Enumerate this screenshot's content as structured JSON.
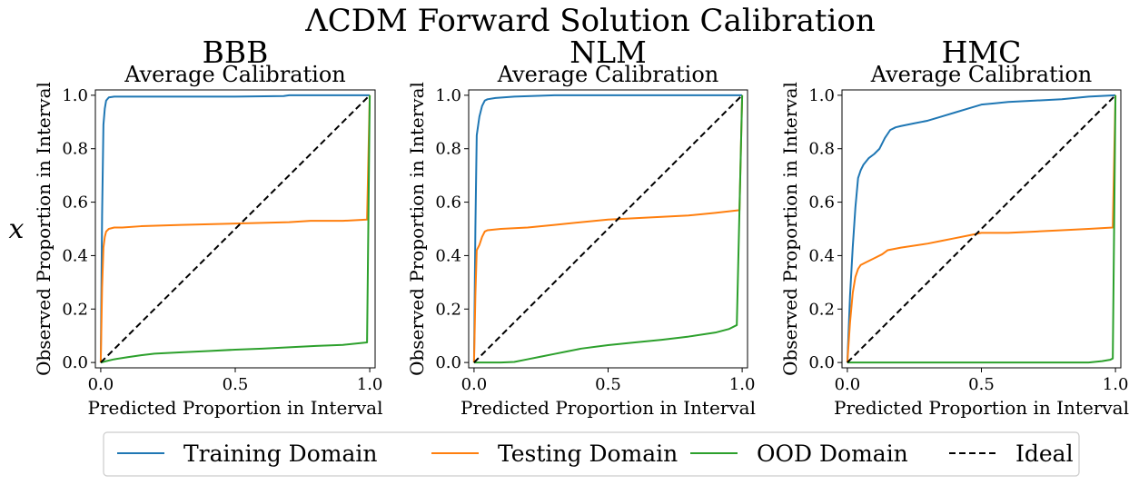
{
  "figure": {
    "suptitle": "ΛCDM Forward Solution Calibration",
    "row_label": "x"
  },
  "colors": {
    "training": "#1f77b4",
    "testing": "#ff7f0e",
    "ood": "#2ca02c",
    "ideal": "#000000"
  },
  "legend": {
    "placement": "bottom-center",
    "entries": [
      {
        "key": "training",
        "label": "Training Domain",
        "style": "solid"
      },
      {
        "key": "testing",
        "label": "Testing Domain",
        "style": "solid"
      },
      {
        "key": "ood",
        "label": "OOD Domain",
        "style": "solid"
      },
      {
        "key": "ideal",
        "label": "Ideal",
        "style": "dashed"
      }
    ]
  },
  "chart_data": [
    {
      "type": "line",
      "title": "BBB",
      "subtitle": "Average Calibration",
      "xlabel": "Predicted Proportion in Interval",
      "ylabel": "Observed Proportion in Interval",
      "xlim": [
        0,
        1
      ],
      "ylim": [
        0,
        1
      ],
      "xticks": [
        0.0,
        0.5,
        1.0
      ],
      "xtick_labels": [
        "0.0",
        "0.5",
        "1.0"
      ],
      "yticks": [
        0,
        0.2,
        0.4,
        0.6,
        0.8,
        1.0
      ],
      "ytick_labels": [
        "0.0",
        "0.2",
        "0.4",
        "0.6",
        "0.8",
        "1.0"
      ],
      "series": [
        {
          "key": "training",
          "x": [
            0,
            0.005,
            0.01,
            0.015,
            0.02,
            0.03,
            0.05,
            0.1,
            0.3,
            0.5,
            0.68,
            0.7,
            1.0
          ],
          "y": [
            0,
            0.55,
            0.89,
            0.95,
            0.98,
            0.992,
            0.995,
            0.995,
            0.995,
            0.995,
            0.997,
            1.0,
            1.0
          ]
        },
        {
          "key": "testing",
          "x": [
            0,
            0.005,
            0.01,
            0.015,
            0.02,
            0.03,
            0.05,
            0.08,
            0.15,
            0.3,
            0.5,
            0.7,
            0.78,
            0.9,
            0.99,
            1.0
          ],
          "y": [
            0,
            0.28,
            0.43,
            0.47,
            0.49,
            0.5,
            0.505,
            0.505,
            0.51,
            0.515,
            0.52,
            0.525,
            0.53,
            0.53,
            0.535,
            1.0
          ]
        },
        {
          "key": "ood",
          "x": [
            0,
            0.02,
            0.05,
            0.1,
            0.15,
            0.2,
            0.3,
            0.4,
            0.5,
            0.6,
            0.7,
            0.8,
            0.9,
            0.99,
            1.0
          ],
          "y": [
            0,
            0.005,
            0.012,
            0.02,
            0.027,
            0.033,
            0.038,
            0.043,
            0.048,
            0.052,
            0.057,
            0.062,
            0.066,
            0.075,
            1.0
          ]
        },
        {
          "key": "ideal",
          "x": [
            0,
            1
          ],
          "y": [
            0,
            1
          ]
        }
      ]
    },
    {
      "type": "line",
      "title": "NLM",
      "subtitle": "Average Calibration",
      "xlabel": "Predicted Proportion in Interval",
      "ylabel": "Observed Proportion in Interval",
      "xlim": [
        0,
        1
      ],
      "ylim": [
        0,
        1
      ],
      "xticks": [
        0.0,
        0.5,
        1.0
      ],
      "xtick_labels": [
        "0.0",
        "0.5",
        "1.0"
      ],
      "yticks": [
        0,
        0.2,
        0.4,
        0.6,
        0.8,
        1.0
      ],
      "ytick_labels": [
        "0.0",
        "0.2",
        "0.4",
        "0.6",
        "0.8",
        "1.0"
      ],
      "series": [
        {
          "key": "training",
          "x": [
            0,
            0.005,
            0.01,
            0.02,
            0.03,
            0.04,
            0.05,
            0.08,
            0.15,
            0.3,
            0.5,
            1.0
          ],
          "y": [
            0,
            0.5,
            0.85,
            0.92,
            0.96,
            0.98,
            0.985,
            0.99,
            0.995,
            1.0,
            1.0,
            1.0
          ]
        },
        {
          "key": "testing",
          "x": [
            0,
            0.005,
            0.01,
            0.02,
            0.03,
            0.04,
            0.05,
            0.1,
            0.2,
            0.3,
            0.4,
            0.5,
            0.6,
            0.7,
            0.8,
            0.9,
            0.99,
            1.0
          ],
          "y": [
            0,
            0.25,
            0.42,
            0.44,
            0.47,
            0.49,
            0.495,
            0.5,
            0.505,
            0.515,
            0.525,
            0.535,
            0.54,
            0.545,
            0.55,
            0.56,
            0.57,
            1.0
          ]
        },
        {
          "key": "ood",
          "x": [
            0,
            0.1,
            0.15,
            0.2,
            0.25,
            0.3,
            0.35,
            0.4,
            0.5,
            0.6,
            0.7,
            0.8,
            0.9,
            0.95,
            0.98,
            1.0
          ],
          "y": [
            0,
            0,
            0.002,
            0.012,
            0.022,
            0.032,
            0.042,
            0.052,
            0.065,
            0.075,
            0.085,
            0.097,
            0.112,
            0.125,
            0.14,
            1.0
          ]
        },
        {
          "key": "ideal",
          "x": [
            0,
            1
          ],
          "y": [
            0,
            1
          ]
        }
      ]
    },
    {
      "type": "line",
      "title": "HMC",
      "subtitle": "Average Calibration",
      "xlabel": "Predicted Proportion in Interval",
      "ylabel": "Observed Proportion in Interval",
      "xlim": [
        0,
        1
      ],
      "ylim": [
        0,
        1
      ],
      "xticks": [
        0.0,
        0.5,
        1.0
      ],
      "xtick_labels": [
        "0.0",
        "0.5",
        "1.0"
      ],
      "yticks": [
        0,
        0.2,
        0.4,
        0.6,
        0.8,
        1.0
      ],
      "ytick_labels": [
        "0.0",
        "0.2",
        "0.4",
        "0.6",
        "0.8",
        "1.0"
      ],
      "series": [
        {
          "key": "training",
          "x": [
            0,
            0.01,
            0.02,
            0.03,
            0.04,
            0.05,
            0.06,
            0.08,
            0.1,
            0.12,
            0.14,
            0.16,
            0.18,
            0.2,
            0.25,
            0.3,
            0.35,
            0.4,
            0.45,
            0.5,
            0.55,
            0.6,
            0.7,
            0.8,
            0.9,
            1.0
          ],
          "y": [
            0,
            0.25,
            0.43,
            0.58,
            0.69,
            0.72,
            0.74,
            0.765,
            0.78,
            0.8,
            0.84,
            0.87,
            0.88,
            0.885,
            0.895,
            0.905,
            0.92,
            0.935,
            0.95,
            0.965,
            0.97,
            0.975,
            0.98,
            0.985,
            0.995,
            1.0
          ]
        },
        {
          "key": "testing",
          "x": [
            0,
            0.01,
            0.02,
            0.03,
            0.04,
            0.05,
            0.07,
            0.1,
            0.13,
            0.15,
            0.2,
            0.3,
            0.35,
            0.4,
            0.45,
            0.5,
            0.6,
            0.7,
            0.8,
            0.9,
            0.99,
            1.0
          ],
          "y": [
            0,
            0.15,
            0.26,
            0.32,
            0.35,
            0.365,
            0.375,
            0.39,
            0.405,
            0.42,
            0.43,
            0.445,
            0.455,
            0.465,
            0.475,
            0.485,
            0.485,
            0.49,
            0.495,
            0.5,
            0.505,
            1.0
          ]
        },
        {
          "key": "ood",
          "x": [
            0,
            0.9,
            0.95,
            0.98,
            0.99,
            1.0
          ],
          "y": [
            0,
            0,
            0.005,
            0.01,
            0.015,
            1.0
          ]
        },
        {
          "key": "ideal",
          "x": [
            0,
            1
          ],
          "y": [
            0,
            1
          ]
        }
      ]
    }
  ]
}
